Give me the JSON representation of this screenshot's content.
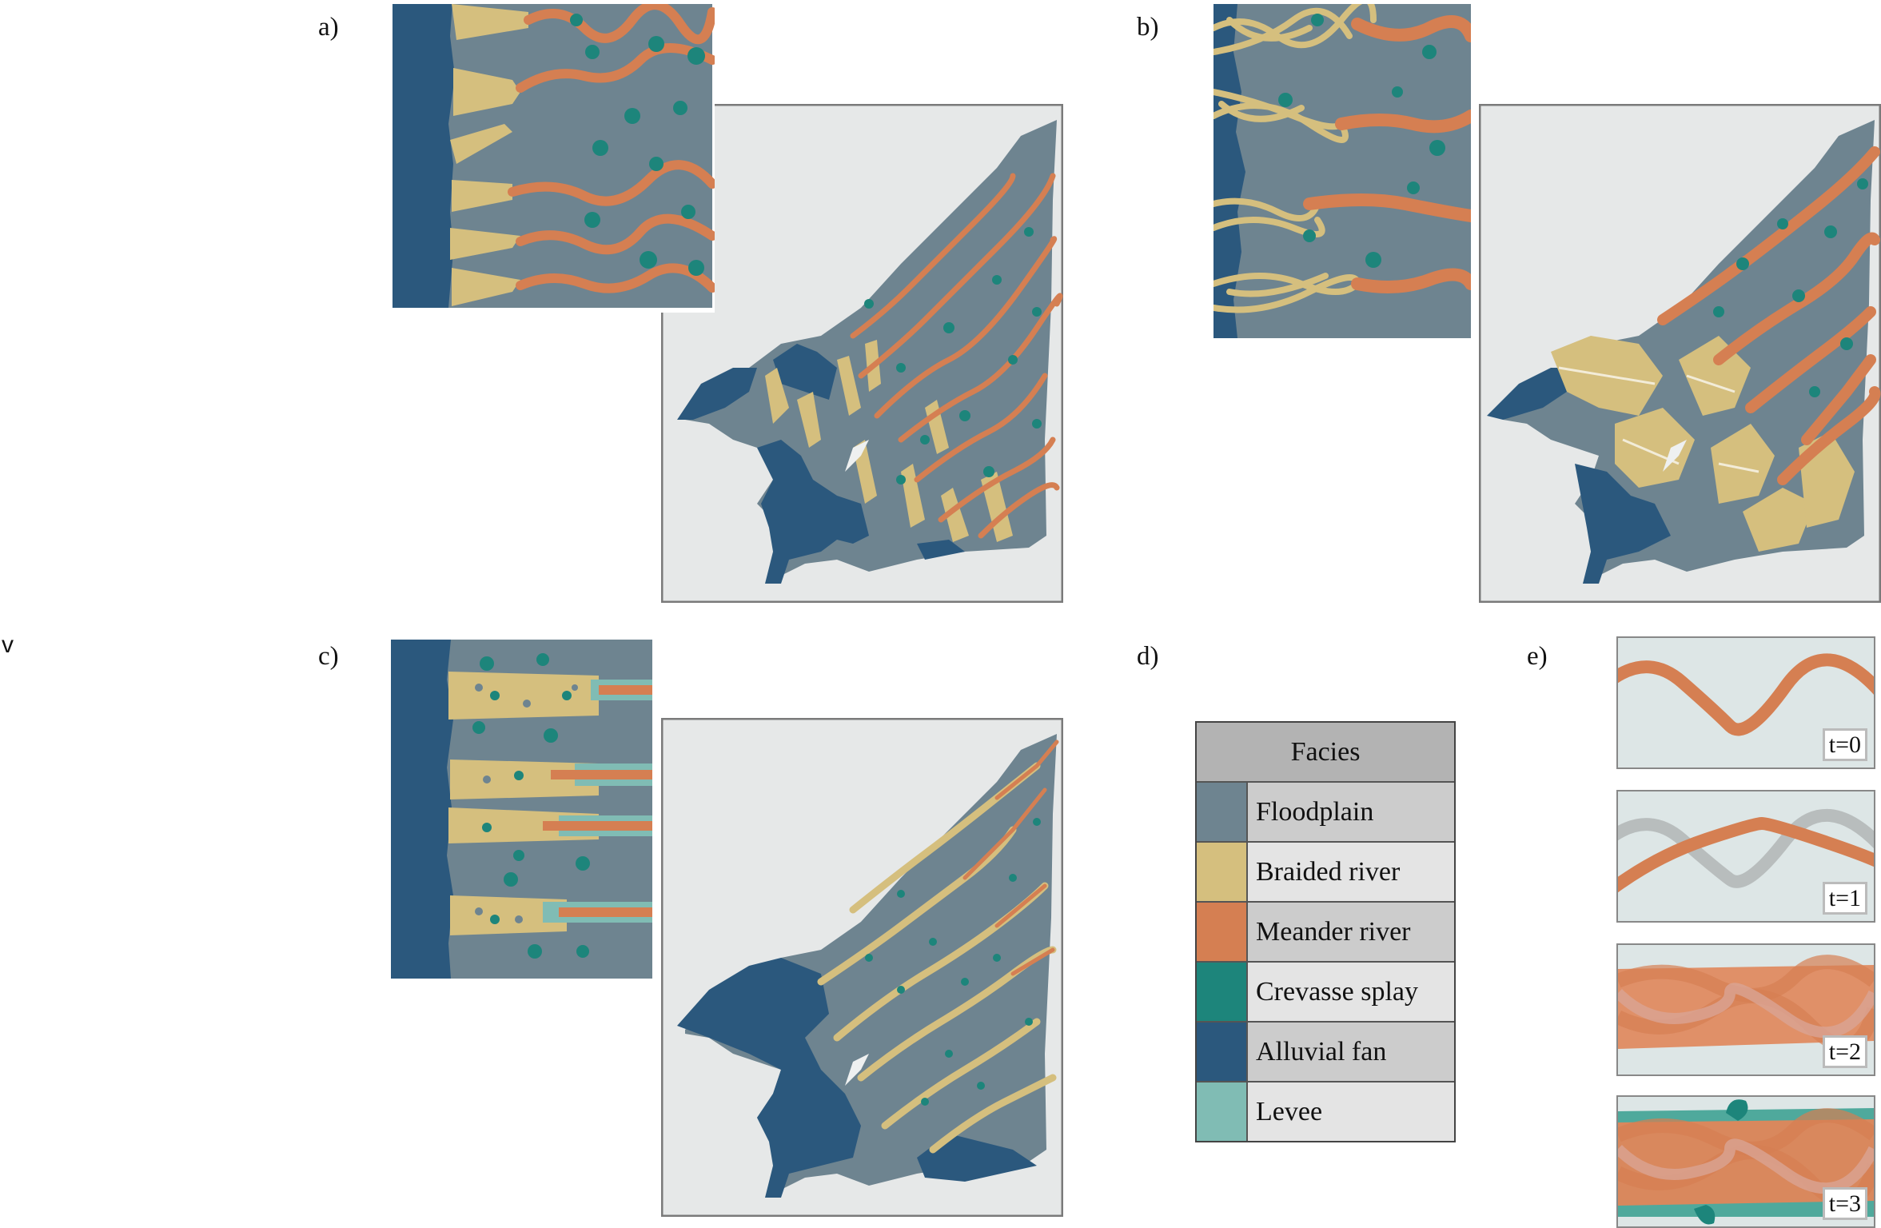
{
  "panel_labels": {
    "a": "a)",
    "b": "b)",
    "c": "c)",
    "d": "d)",
    "e": "e)"
  },
  "stray_mark": "v",
  "legend": {
    "title": "Facies",
    "items": [
      {
        "label": "Floodplain",
        "color": "#6e8490"
      },
      {
        "label": "Braided river",
        "color": "#d5bf7e"
      },
      {
        "label": "Meander river",
        "color": "#d57f52"
      },
      {
        "label": "Crevasse splay",
        "color": "#1d857b"
      },
      {
        "label": "Alluvial fan",
        "color": "#2b587d"
      },
      {
        "label": "Levee",
        "color": "#80bcb4"
      }
    ]
  },
  "time_steps": [
    "t=0",
    "t=1",
    "t=2",
    "t=3"
  ],
  "colors": {
    "background_map": "#e6e8e8",
    "frame": "#7a7a7a",
    "channel_old": "#b8bdbd",
    "ebox_bg": "#dde6e6"
  }
}
